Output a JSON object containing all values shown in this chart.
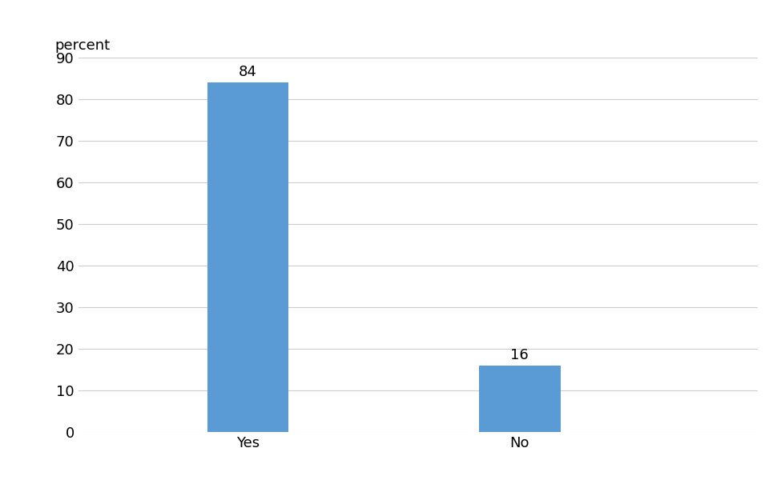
{
  "categories": [
    "Yes",
    "No"
  ],
  "values": [
    84,
    16
  ],
  "bar_color": "#5B9BD5",
  "ylabel_text": "percent",
  "ylim": [
    0,
    90
  ],
  "yticks": [
    0,
    10,
    20,
    30,
    40,
    50,
    60,
    70,
    80,
    90
  ],
  "bar_width": 0.12,
  "x_positions": [
    0.25,
    0.65
  ],
  "xlim": [
    0.0,
    1.0
  ],
  "background_color": "#ffffff",
  "grid_color": "#cccccc",
  "tick_fontsize": 13,
  "ylabel_fontsize": 13,
  "annotation_fontsize": 13
}
